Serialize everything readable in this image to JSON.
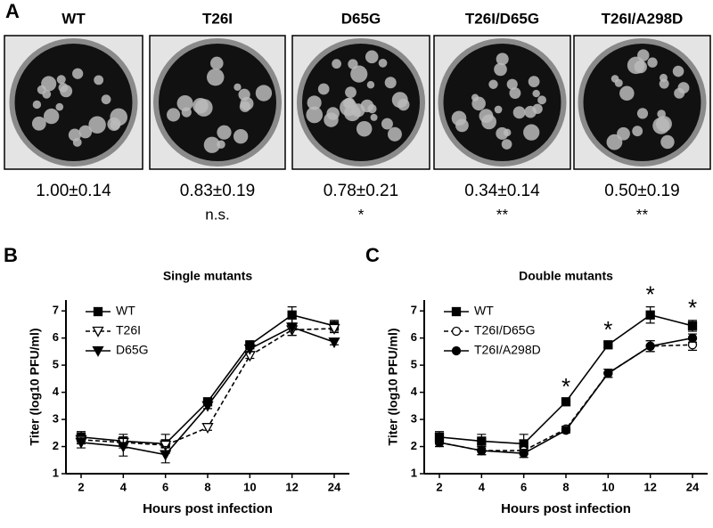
{
  "panel_a": {
    "label": "A",
    "plates": [
      {
        "name": "WT",
        "ratio": "1.00±0.14"
      },
      {
        "name": "T26I",
        "ratio": "0.83±0.19",
        "significance": "n.s."
      },
      {
        "name": "D65G",
        "ratio": "0.78±0.21",
        "significance": "*"
      },
      {
        "name": "T26I/D65G",
        "ratio": "0.34±0.14",
        "significance": "**"
      },
      {
        "name": "T26I/A298D",
        "ratio": "0.50±0.19",
        "significance": "**"
      }
    ]
  },
  "chart_data": [
    {
      "type": "line",
      "panel_label": "B",
      "title": "Single mutants",
      "x_label": "Hours post infection",
      "y_label": "Titer (log10 PFU/ml)",
      "categories": [
        "2",
        "4",
        "6",
        "8",
        "10",
        "12",
        "24"
      ],
      "ylim": [
        1,
        7.4
      ],
      "yticks": [
        1,
        2,
        3,
        4,
        5,
        6,
        7
      ],
      "legend": "top-left",
      "series": [
        {
          "name": "WT",
          "color": "#000000",
          "marker": "square",
          "dashed": false,
          "values": [
            2.35,
            2.2,
            2.1,
            3.65,
            5.75,
            6.85,
            6.45
          ],
          "errors": [
            0.2,
            0.25,
            0.35,
            0.1,
            0.1,
            0.3,
            0.2
          ]
        },
        {
          "name": "T26I",
          "color": "#000000",
          "marker": "triangle-down-open",
          "dashed": true,
          "values": [
            2.25,
            2.15,
            2.05,
            2.7,
            5.35,
            6.3,
            6.35
          ],
          "errors": [
            0.15,
            0.2,
            0.2,
            0.1,
            0.1,
            0.2,
            0.15
          ]
        },
        {
          "name": "D65G",
          "color": "#000000",
          "marker": "triangle-down",
          "dashed": false,
          "values": [
            2.15,
            2.0,
            1.7,
            3.5,
            5.6,
            6.4,
            5.85
          ],
          "errors": [
            0.2,
            0.35,
            0.3,
            0.1,
            0.1,
            0.3,
            0.1
          ]
        }
      ]
    },
    {
      "type": "line",
      "panel_label": "C",
      "title": "Double mutants",
      "x_label": "Hours post infection",
      "y_label": "Titer (log10 PFU/ml)",
      "categories": [
        "2",
        "4",
        "6",
        "8",
        "10",
        "12",
        "24"
      ],
      "ylim": [
        1,
        7.4
      ],
      "yticks": [
        1,
        2,
        3,
        4,
        5,
        6,
        7
      ],
      "legend": "top-left",
      "annotations": [
        {
          "category": "8",
          "text": "*"
        },
        {
          "category": "10",
          "text": "*"
        },
        {
          "category": "12",
          "text": "*"
        },
        {
          "category": "24",
          "text": "*"
        }
      ],
      "series": [
        {
          "name": "WT",
          "color": "#000000",
          "marker": "square",
          "dashed": false,
          "values": [
            2.35,
            2.2,
            2.1,
            3.65,
            5.75,
            6.85,
            6.45
          ],
          "errors": [
            0.2,
            0.25,
            0.35,
            0.1,
            0.1,
            0.3,
            0.2
          ]
        },
        {
          "name": "T26I/D65G",
          "color": "#000000",
          "marker": "circle-open",
          "dashed": true,
          "values": [
            2.15,
            1.85,
            1.85,
            2.65,
            4.7,
            5.7,
            5.75
          ],
          "errors": [
            0.15,
            0.15,
            0.15,
            0.1,
            0.15,
            0.2,
            0.2
          ]
        },
        {
          "name": "T26I/A298D",
          "color": "#000000",
          "marker": "circle",
          "dashed": false,
          "values": [
            2.15,
            1.85,
            1.75,
            2.6,
            4.7,
            5.7,
            6.0
          ],
          "errors": [
            0.15,
            0.15,
            0.15,
            0.1,
            0.15,
            0.2,
            0.15
          ]
        }
      ]
    }
  ]
}
